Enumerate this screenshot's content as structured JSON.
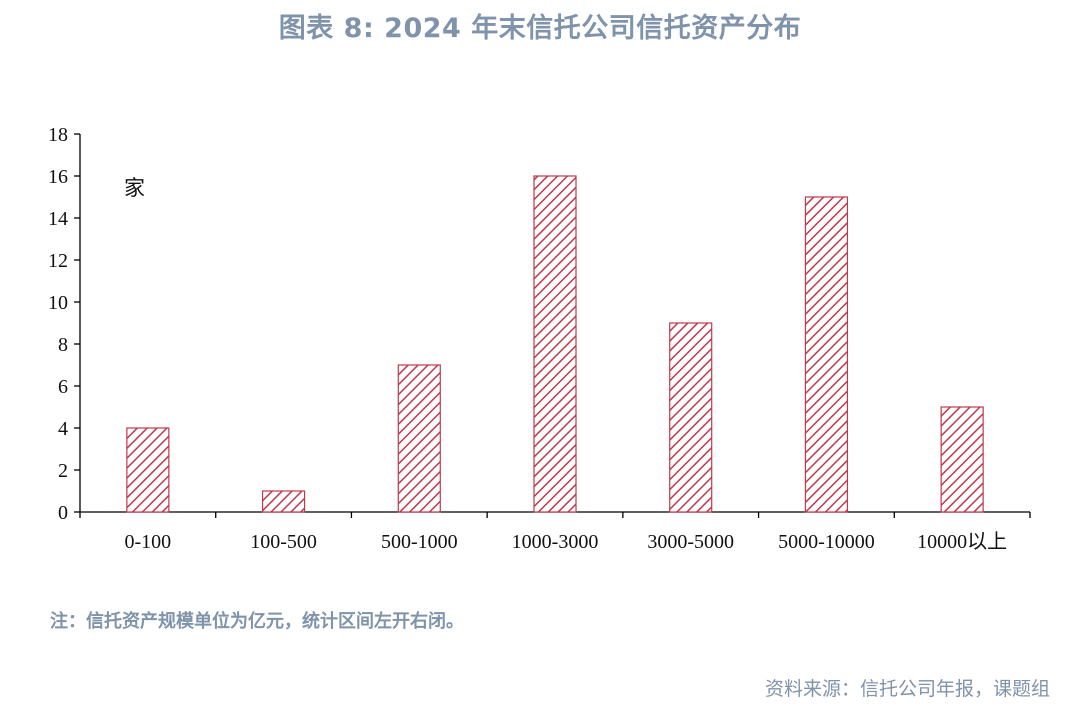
{
  "title": "图表 8: 2024 年末信托公司信托资产分布",
  "chart_data": {
    "type": "bar",
    "categories": [
      "0-100",
      "100-500",
      "500-1000",
      "1000-3000",
      "3000-5000",
      "5000-10000",
      "10000以上"
    ],
    "values": [
      4,
      1,
      7,
      16,
      9,
      15,
      5
    ],
    "unit_label": "家",
    "ylim": [
      0,
      18
    ],
    "yticks": [
      "0",
      "2",
      "4",
      "6",
      "8",
      "10",
      "12",
      "14",
      "16",
      "18"
    ],
    "grid": false,
    "legend": "none",
    "bar_color": "#c0394b",
    "bar_pattern": "diagonal-hatch"
  },
  "note": "注：信托资产规模单位为亿元，统计区间左开右闭。",
  "source": "资料来源：信托公司年报，课题组"
}
